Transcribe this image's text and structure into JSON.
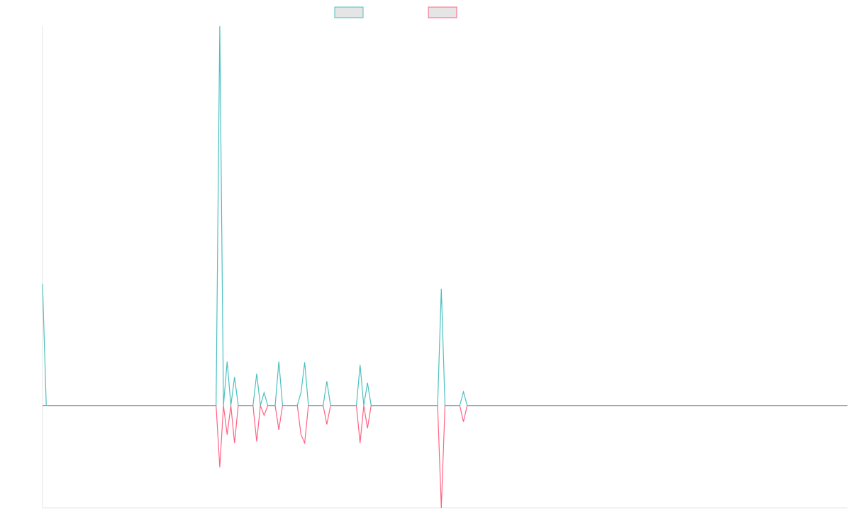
{
  "chart_data": {
    "type": "line",
    "ylim": [
      -27,
      100
    ],
    "legend": "top",
    "series": [
      {
        "color": "#4bc0c0",
        "values": [
          32,
          0,
          0,
          0,
          0,
          0,
          0,
          0,
          0,
          0,
          0,
          0,
          0,
          0,
          0,
          0,
          0,
          0,
          0,
          0,
          0,
          0,
          0,
          0,
          0,
          0,
          0,
          0,
          0,
          0,
          0,
          0,
          0,
          0,
          0,
          0,
          0,
          0,
          0,
          0,
          0,
          0,
          0,
          0,
          0,
          0,
          0,
          0,
          100,
          0,
          11.6,
          0,
          7.5,
          0,
          0,
          0,
          0,
          0,
          8.4,
          0,
          3.4,
          0,
          0,
          0,
          11.6,
          0,
          0,
          0,
          0,
          0,
          3.4,
          11.4,
          0,
          0,
          0,
          0,
          0,
          6.4,
          0,
          0,
          0,
          0,
          0,
          0,
          0,
          0,
          10.7,
          0,
          6,
          0,
          0,
          0,
          0,
          0,
          0,
          0,
          0,
          0,
          0,
          0,
          0,
          0,
          0,
          0,
          0,
          0,
          0,
          0,
          30.8,
          0,
          0,
          0,
          0,
          0,
          3.6,
          0,
          0,
          0,
          0,
          0,
          0,
          0,
          0,
          0,
          0,
          0,
          0,
          0,
          0,
          0,
          0,
          0,
          0,
          0,
          0,
          0,
          0,
          0,
          0,
          0,
          0,
          0,
          0,
          0,
          0,
          0,
          0,
          0,
          0,
          0,
          0,
          0,
          0,
          0,
          0,
          0,
          0,
          0,
          0,
          0,
          0,
          0,
          0,
          0,
          0,
          0,
          0,
          0,
          0,
          0,
          0,
          0,
          0,
          0,
          0,
          0,
          0,
          0,
          0,
          0,
          0,
          0,
          0,
          0,
          0,
          0,
          0,
          0,
          0,
          0,
          0,
          0,
          0,
          0,
          0,
          0,
          0,
          0,
          0,
          0,
          0,
          0,
          0,
          0,
          0,
          0,
          0,
          0,
          0,
          0,
          0,
          0,
          0,
          0,
          0,
          0,
          0,
          0,
          0
        ]
      },
      {
        "color": "#ff6384",
        "values": [
          0,
          0,
          0,
          0,
          0,
          0,
          0,
          0,
          0,
          0,
          0,
          0,
          0,
          0,
          0,
          0,
          0,
          0,
          0,
          0,
          0,
          0,
          0,
          0,
          0,
          0,
          0,
          0,
          0,
          0,
          0,
          0,
          0,
          0,
          0,
          0,
          0,
          0,
          0,
          0,
          0,
          0,
          0,
          0,
          0,
          0,
          0,
          0,
          -16.3,
          0,
          -7.7,
          0,
          -9.9,
          0,
          0,
          0,
          0,
          0,
          -9.5,
          0,
          -2.6,
          0,
          0,
          0,
          -6.4,
          0,
          0,
          0,
          0,
          0,
          -7.7,
          -9.9,
          0,
          0,
          0,
          0,
          0,
          -5,
          0,
          0,
          0,
          0,
          0,
          0,
          0,
          0,
          -9.9,
          0,
          -6,
          0,
          0,
          0,
          0,
          0,
          0,
          0,
          0,
          0,
          0,
          0,
          0,
          0,
          0,
          0,
          0,
          0,
          0,
          0,
          -27,
          0,
          0,
          0,
          0,
          0,
          -4.3,
          0,
          0,
          0,
          0,
          0,
          0,
          0,
          0,
          0,
          0,
          0,
          0,
          0,
          0,
          0,
          0,
          0,
          0,
          0,
          0,
          0,
          0,
          0,
          0,
          0,
          0,
          0,
          0,
          0,
          0,
          0,
          0,
          0,
          0,
          0,
          0,
          0,
          0,
          0,
          0,
          0,
          0,
          0,
          0,
          0,
          0,
          0,
          0,
          0,
          0,
          0,
          0,
          0,
          0,
          0,
          0,
          0,
          0,
          0,
          0,
          0,
          0,
          0,
          0,
          0,
          0,
          0,
          0,
          0,
          0,
          0,
          0,
          0,
          0,
          0,
          0,
          0,
          0,
          0,
          0,
          0,
          0,
          0,
          0,
          0,
          0,
          0,
          0,
          0,
          0,
          0,
          0,
          0,
          0,
          0,
          0,
          0,
          0,
          0,
          0,
          0,
          0,
          0,
          0
        ]
      }
    ]
  }
}
